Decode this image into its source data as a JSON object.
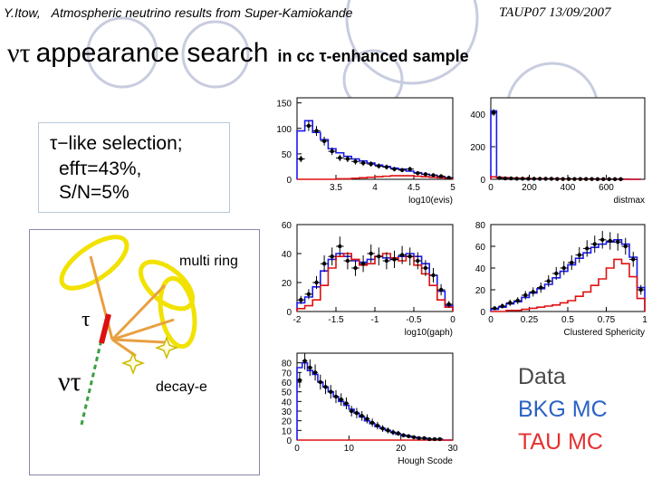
{
  "header": {
    "author": "Y.Itow,",
    "talk_title": "Atmospheric neutrino results from Super-Kamiokande",
    "conference": "TAUP07 13/09/2007"
  },
  "title": {
    "greek": "ντ",
    "main": "appearance search",
    "subtitle": "in cc τ-enhanced sample"
  },
  "selection": {
    "line1": "τ−like selection;",
    "line2": "effτ=43%,",
    "line3": "S/N=5%"
  },
  "diagram": {
    "multi_ring_label": "multi ring",
    "decay_label": "decay-e",
    "tau_label": "τ",
    "nutau_label": "ντ"
  },
  "legend": {
    "data": "Data",
    "bkg": "BKG MC",
    "tau": "TAU MC"
  },
  "colors": {
    "data": "#000000",
    "bkg": "#1a1aee",
    "tau": "#e01010",
    "legend_data": "#4a4a4a",
    "legend_bkg": "#2b63c4",
    "legend_tau": "#e53030"
  },
  "chart_data": [
    {
      "type": "line",
      "xlabel": "log10(evis)",
      "ylabel": "",
      "xlim": [
        3.0,
        5.0
      ],
      "ylim": [
        0,
        160
      ],
      "yticks": [
        0,
        50,
        100,
        150
      ],
      "xticks": [
        3.5,
        4,
        4.5,
        5
      ],
      "x": [
        3.05,
        3.15,
        3.25,
        3.35,
        3.45,
        3.55,
        3.65,
        3.75,
        3.85,
        3.95,
        4.05,
        4.15,
        4.25,
        4.35,
        4.45,
        4.55,
        4.65,
        4.75,
        4.85,
        4.95
      ],
      "series": [
        {
          "name": "Data",
          "values": [
            40,
            105,
            95,
            75,
            55,
            42,
            40,
            35,
            32,
            30,
            26,
            24,
            20,
            18,
            20,
            12,
            10,
            8,
            6,
            3
          ]
        },
        {
          "name": "BKG MC",
          "values": [
            95,
            115,
            92,
            78,
            60,
            52,
            45,
            40,
            36,
            32,
            28,
            25,
            22,
            20,
            16,
            13,
            10,
            8,
            5,
            3
          ]
        },
        {
          "name": "TAU MC",
          "values": [
            0,
            0,
            0,
            0,
            0,
            1,
            1,
            2,
            3,
            4,
            5,
            6,
            7,
            7,
            7,
            6,
            5,
            4,
            3,
            2
          ]
        }
      ]
    },
    {
      "type": "line",
      "xlabel": "distmax",
      "ylabel": "",
      "xlim": [
        0,
        800
      ],
      "ylim": [
        0,
        500
      ],
      "yticks": [
        0,
        200,
        400
      ],
      "xticks": [
        0,
        200,
        400,
        600
      ],
      "x": [
        15,
        45,
        75,
        105,
        135,
        165,
        195,
        225,
        255,
        285,
        315,
        345,
        375,
        405,
        435,
        465,
        495,
        525,
        555,
        585,
        615,
        645,
        675,
        705,
        735,
        765
      ],
      "series": [
        {
          "name": "Data",
          "values": [
            410,
            8,
            5,
            5,
            4,
            4,
            3,
            3,
            3,
            3,
            3,
            2,
            2,
            2,
            2,
            2,
            2,
            2,
            1,
            1,
            1,
            1,
            1,
            0,
            0,
            0
          ]
        },
        {
          "name": "BKG MC",
          "values": [
            420,
            10,
            6,
            5,
            5,
            4,
            4,
            3,
            3,
            3,
            3,
            2,
            2,
            2,
            2,
            2,
            2,
            2,
            1,
            1,
            1,
            1,
            1,
            1,
            0,
            0
          ]
        },
        {
          "name": "TAU MC",
          "values": [
            15,
            12,
            10,
            8,
            7,
            6,
            5,
            4,
            4,
            3,
            3,
            3,
            2,
            2,
            2,
            2,
            1,
            1,
            1,
            1,
            1,
            1,
            0,
            0,
            0,
            0
          ]
        }
      ]
    },
    {
      "type": "line",
      "xlabel": "log10(gaph)",
      "ylabel": "",
      "xlim": [
        -2,
        0
      ],
      "ylim": [
        0,
        60
      ],
      "yticks": [
        0,
        20,
        40,
        60
      ],
      "xticks": [
        -2,
        -1.5,
        -1,
        -0.5,
        0
      ],
      "x": [
        -1.95,
        -1.85,
        -1.75,
        -1.65,
        -1.55,
        -1.45,
        -1.35,
        -1.25,
        -1.15,
        -1.05,
        -0.95,
        -0.85,
        -0.75,
        -0.65,
        -0.55,
        -0.45,
        -0.35,
        -0.25,
        -0.15,
        -0.05
      ],
      "series": [
        {
          "name": "Data",
          "values": [
            8,
            12,
            20,
            33,
            38,
            45,
            35,
            30,
            33,
            40,
            38,
            35,
            36,
            39,
            38,
            35,
            30,
            25,
            15,
            5
          ]
        },
        {
          "name": "BKG MC",
          "values": [
            6,
            10,
            17,
            28,
            36,
            40,
            38,
            35,
            34,
            36,
            38,
            37,
            36,
            38,
            40,
            38,
            33,
            25,
            14,
            4
          ]
        },
        {
          "name": "TAU MC",
          "values": [
            2,
            4,
            8,
            18,
            30,
            38,
            40,
            36,
            32,
            33,
            38,
            40,
            37,
            35,
            38,
            32,
            26,
            18,
            8,
            3
          ]
        }
      ]
    },
    {
      "type": "line",
      "xlabel": "Clustered Sphericity",
      "ylabel": "",
      "xlim": [
        0,
        1
      ],
      "ylim": [
        0,
        80
      ],
      "yticks": [
        0,
        20,
        40,
        60,
        80
      ],
      "xticks": [
        0,
        0.25,
        0.5,
        0.75,
        1
      ],
      "x": [
        0.025,
        0.075,
        0.125,
        0.175,
        0.225,
        0.275,
        0.325,
        0.375,
        0.425,
        0.475,
        0.525,
        0.575,
        0.625,
        0.675,
        0.725,
        0.775,
        0.825,
        0.875,
        0.925,
        0.975
      ],
      "series": [
        {
          "name": "Data",
          "values": [
            3,
            5,
            8,
            10,
            15,
            18,
            22,
            28,
            35,
            40,
            45,
            52,
            58,
            62,
            66,
            65,
            64,
            60,
            48,
            20
          ]
        },
        {
          "name": "BKG MC",
          "values": [
            2,
            4,
            7,
            9,
            13,
            17,
            21,
            25,
            31,
            37,
            43,
            49,
            54,
            59,
            62,
            64,
            66,
            62,
            50,
            22
          ]
        },
        {
          "name": "TAU MC",
          "values": [
            0,
            0,
            1,
            1,
            2,
            3,
            4,
            5,
            6,
            8,
            10,
            14,
            18,
            24,
            30,
            40,
            48,
            44,
            32,
            12
          ]
        }
      ]
    },
    {
      "type": "line",
      "xlabel": "Hough Scode",
      "ylabel": "",
      "xlim": [
        0,
        30
      ],
      "ylim": [
        0,
        90
      ],
      "yticks": [
        0,
        10,
        20,
        30,
        40,
        50,
        60,
        70,
        80
      ],
      "xticks": [
        0,
        10,
        20,
        30
      ],
      "x": [
        0.5,
        1.5,
        2.5,
        3.5,
        4.5,
        5.5,
        6.5,
        7.5,
        8.5,
        9.5,
        10.5,
        11.5,
        12.5,
        13.5,
        14.5,
        15.5,
        16.5,
        17.5,
        18.5,
        19.5,
        20.5,
        21.5,
        22.5,
        23.5,
        24.5,
        25.5,
        26.5,
        27.5,
        28.5,
        29.5
      ],
      "series": [
        {
          "name": "Data",
          "values": [
            62,
            82,
            75,
            70,
            60,
            55,
            50,
            45,
            42,
            38,
            30,
            28,
            25,
            22,
            18,
            15,
            12,
            10,
            8,
            7,
            5,
            4,
            3,
            2,
            2,
            1,
            1,
            1,
            0,
            0
          ]
        },
        {
          "name": "BKG MC",
          "values": [
            75,
            80,
            72,
            68,
            60,
            55,
            50,
            45,
            40,
            36,
            32,
            28,
            24,
            20,
            17,
            14,
            12,
            10,
            8,
            6,
            5,
            4,
            3,
            2,
            2,
            1,
            1,
            1,
            0,
            0
          ]
        },
        {
          "name": "TAU MC",
          "values": [
            0,
            0,
            0,
            0,
            0,
            0,
            0,
            0,
            0,
            0,
            0,
            0,
            0,
            0,
            0,
            0,
            0,
            0,
            0,
            0,
            0,
            0,
            0,
            0,
            0,
            0,
            0,
            0,
            0,
            0
          ]
        }
      ]
    }
  ]
}
